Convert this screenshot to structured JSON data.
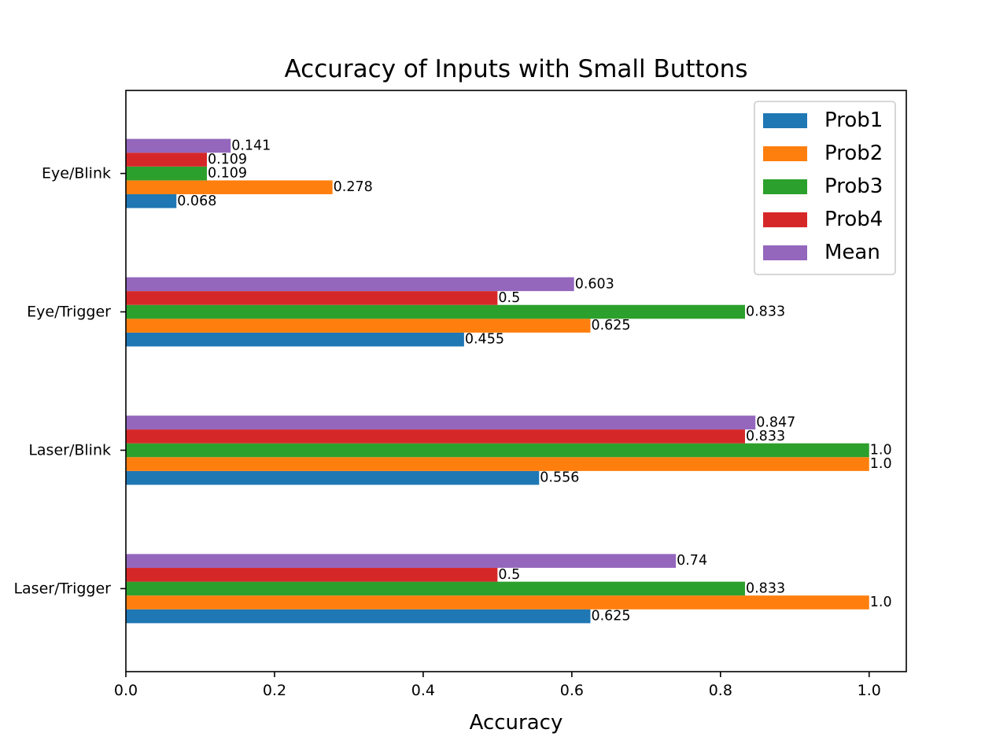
{
  "chart_data": {
    "type": "bar",
    "orientation": "horizontal",
    "title": "Accuracy of Inputs with Small Buttons",
    "xlabel": "Accuracy",
    "ylabel": "",
    "xlim": [
      0,
      1.05
    ],
    "xticks": [
      0.0,
      0.2,
      0.4,
      0.6,
      0.8,
      1.0
    ],
    "xtick_labels": [
      "0.0",
      "0.2",
      "0.4",
      "0.6",
      "0.8",
      "1.0"
    ],
    "categories": [
      "Laser/Trigger",
      "Laser/Blink",
      "Eye/Trigger",
      "Eye/Blink"
    ],
    "series": [
      {
        "name": "Prob1",
        "color": "#1f77b4",
        "values": [
          0.625,
          0.556,
          0.455,
          0.068
        ],
        "labels": [
          "0.625",
          "0.556",
          "0.455",
          "0.068"
        ]
      },
      {
        "name": "Prob2",
        "color": "#ff7f0e",
        "values": [
          1.0,
          1.0,
          0.625,
          0.278
        ],
        "labels": [
          "1.0",
          "1.0",
          "0.625",
          "0.278"
        ]
      },
      {
        "name": "Prob3",
        "color": "#2ca02c",
        "values": [
          0.833,
          1.0,
          0.833,
          0.109
        ],
        "labels": [
          "0.833",
          "1.0",
          "0.833",
          "0.109"
        ]
      },
      {
        "name": "Prob4",
        "color": "#d62728",
        "values": [
          0.5,
          0.833,
          0.5,
          0.109
        ],
        "labels": [
          "0.5",
          "0.833",
          "0.5",
          "0.109"
        ]
      },
      {
        "name": "Mean",
        "color": "#9467bd",
        "values": [
          0.74,
          0.847,
          0.603,
          0.141
        ],
        "labels": [
          "0.74",
          "0.847",
          "0.603",
          "0.141"
        ]
      }
    ],
    "grid": false,
    "legend_position": "top-right"
  }
}
